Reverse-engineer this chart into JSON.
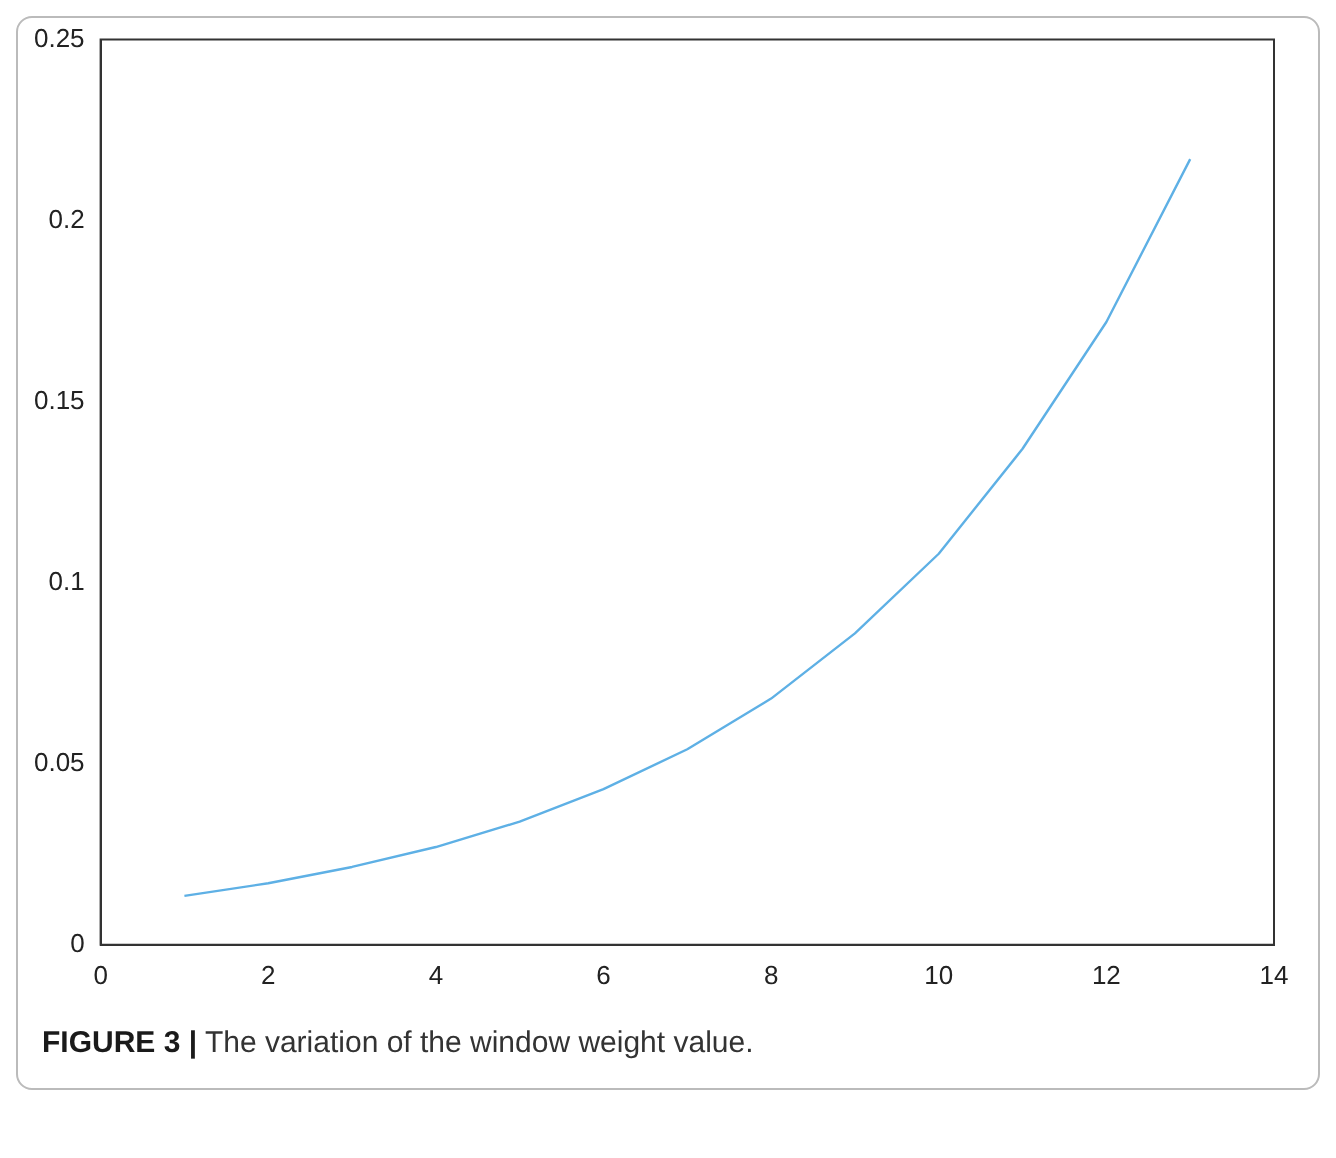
{
  "chart_data": {
    "type": "line",
    "x": [
      1,
      2,
      3,
      4,
      5,
      6,
      7,
      8,
      9,
      10,
      11,
      12,
      13
    ],
    "series": [
      {
        "color": "#5eb0e5",
        "values": [
          0.0135,
          0.017,
          0.0215,
          0.027,
          0.034,
          0.043,
          0.054,
          0.068,
          0.086,
          0.108,
          0.137,
          0.172,
          0.217
        ]
      }
    ],
    "xlim": [
      0,
      14
    ],
    "xticks": [
      0,
      2,
      4,
      6,
      8,
      10,
      12,
      14
    ],
    "ylim": [
      0,
      0.25
    ],
    "yticks": [
      0,
      0.05,
      0.1,
      0.15,
      0.2,
      0.25
    ],
    "grid": false,
    "legend": false,
    "marker": "none",
    "line_style": "solid",
    "annotations": [
      "FIGURE 3 | The variation of the window weight value."
    ]
  }
}
